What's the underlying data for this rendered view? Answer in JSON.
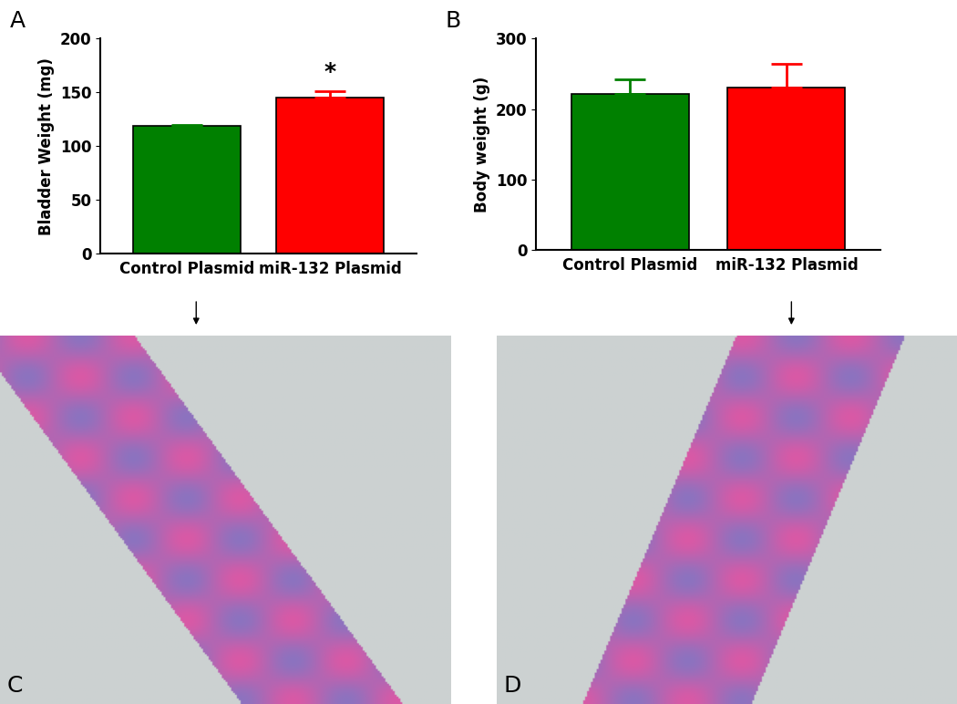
{
  "panel_labels": [
    "A",
    "B",
    "C",
    "D"
  ],
  "chart_data": [
    {
      "type": "bar",
      "y_label": "Bladder Weight (mg)",
      "categories": [
        "Control Plasmid",
        "miR-132 Plasmid"
      ],
      "values": [
        119,
        145
      ],
      "errors": [
        1,
        6
      ],
      "colors": [
        "#008000",
        "#ff0000"
      ],
      "ylim": [
        0,
        200
      ],
      "yticks": [
        0,
        50,
        100,
        150,
        200
      ],
      "annotations": [
        {
          "text": "*",
          "category": "miR-132 Plasmid"
        }
      ]
    },
    {
      "type": "bar",
      "y_label": "Body weight (g)",
      "categories": [
        "Control Plasmid",
        "miR-132 Plasmid"
      ],
      "values": [
        222,
        231
      ],
      "errors": [
        20,
        33
      ],
      "colors": [
        "#008000",
        "#ff0000"
      ],
      "ylim": [
        0,
        300
      ],
      "yticks": [
        0,
        100,
        200,
        300
      ]
    }
  ]
}
